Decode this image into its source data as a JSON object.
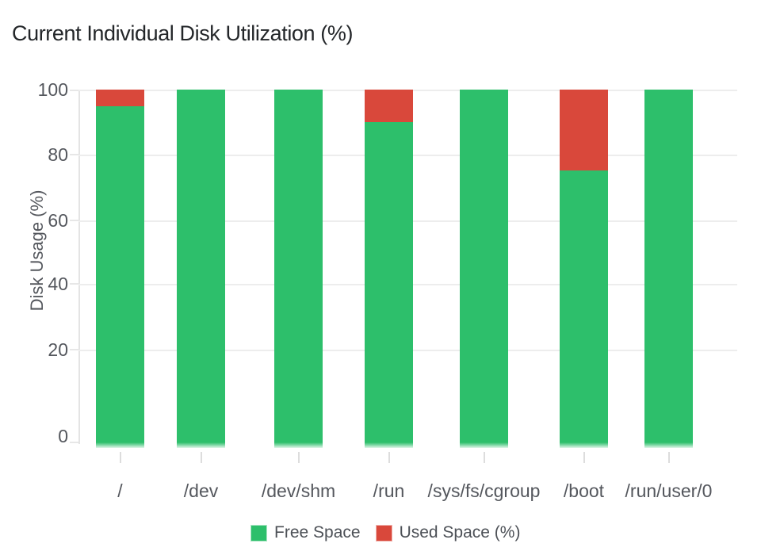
{
  "chart_data": {
    "type": "bar",
    "stacked": true,
    "title": "Current Individual Disk Utilization (%)",
    "ylabel": "Disk Usage (%)",
    "xlabel": "",
    "ylim": [
      0,
      100
    ],
    "yticks": [
      0,
      20,
      40,
      60,
      80,
      100
    ],
    "grid": true,
    "legend_position": "bottom",
    "categories": [
      "/",
      "/dev",
      "/dev/shm",
      "/run",
      "/sys/fs/cgroup",
      "/boot",
      "/run/user/0"
    ],
    "series": [
      {
        "name": "Free Space",
        "color": "#2dbf6b",
        "values": [
          95,
          100,
          100,
          90,
          100,
          75,
          100
        ]
      },
      {
        "name": "Used Space (%)",
        "color": "#d9483b",
        "values": [
          5,
          0,
          0,
          10,
          0,
          25,
          0
        ]
      }
    ]
  }
}
